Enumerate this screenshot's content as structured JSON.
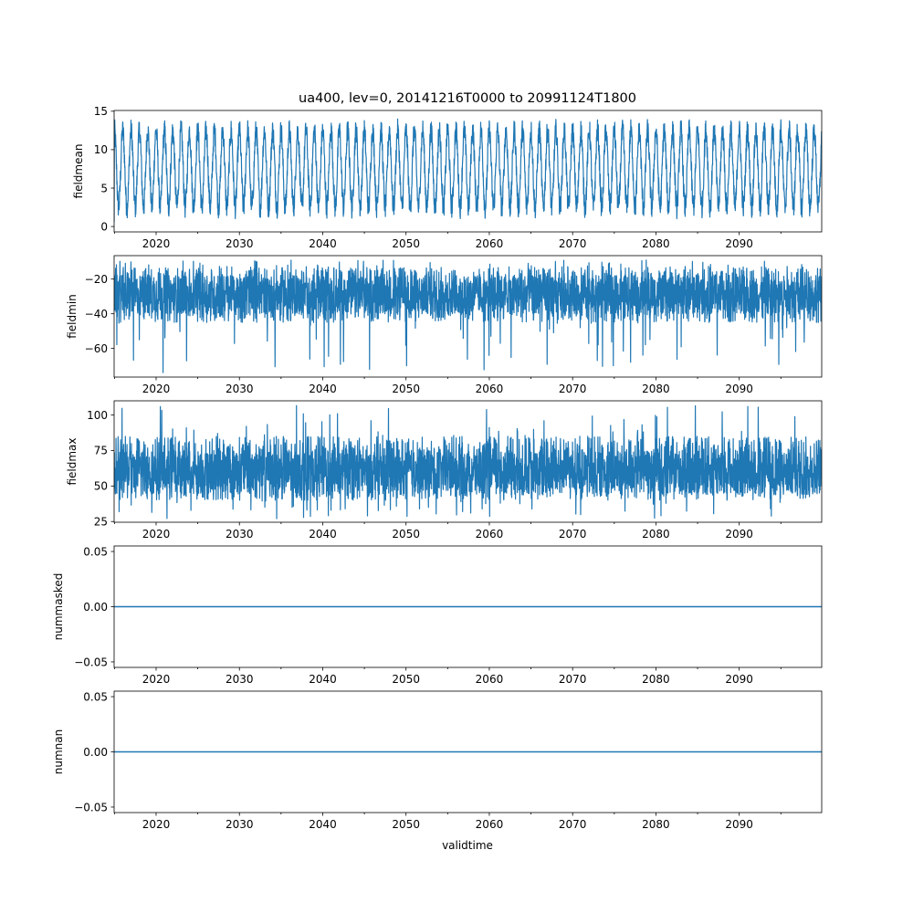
{
  "figure": {
    "title": "ua400, lev=0, 20141216T0000 to 20991124T1800",
    "xlabel": "validtime"
  },
  "colors": {
    "series": "#1f77b4",
    "axis": "#000000",
    "background": "#ffffff"
  },
  "chart_data": [
    {
      "type": "line",
      "name": "fieldmean",
      "ylabel": "fieldmean",
      "xlim": [
        2014.96,
        2099.9
      ],
      "ylim": [
        -0.7,
        15.1
      ],
      "xticks": [
        2020,
        2030,
        2040,
        2050,
        2060,
        2070,
        2080,
        2090
      ],
      "xtick_labels": [
        "2020",
        "2030",
        "2040",
        "2050",
        "2060",
        "2070",
        "2080",
        "2090"
      ],
      "yticks": [
        0,
        5,
        10,
        15
      ],
      "ytick_labels": [
        "0",
        "5",
        "10",
        "15"
      ],
      "series": [
        {
          "name": "fieldmean",
          "pattern": "annual-cycle",
          "low": 2.5,
          "high": 12.5,
          "noise": 1.5,
          "min": 0.0,
          "max": 14.3,
          "start": 0.6
        }
      ]
    },
    {
      "type": "line",
      "name": "fieldmin",
      "ylabel": "fieldmin",
      "xlim": [
        2014.96,
        2099.9
      ],
      "ylim": [
        -76.5,
        -6.5
      ],
      "xticks": [
        2020,
        2030,
        2040,
        2050,
        2060,
        2070,
        2080,
        2090
      ],
      "xtick_labels": [
        "2020",
        "2030",
        "2040",
        "2050",
        "2060",
        "2070",
        "2080",
        "2090"
      ],
      "yticks": [
        -60,
        -40,
        -20
      ],
      "ytick_labels": [
        "−60",
        "−40",
        "−20"
      ],
      "series": [
        {
          "name": "fieldmin",
          "pattern": "noisy-band",
          "center": -29,
          "band_low": -45,
          "band_high": -13,
          "min": -74,
          "max": -9
        }
      ]
    },
    {
      "type": "line",
      "name": "fieldmax",
      "ylabel": "fieldmax",
      "xlim": [
        2014.96,
        2099.9
      ],
      "ylim": [
        24.5,
        110
      ],
      "xticks": [
        2020,
        2030,
        2040,
        2050,
        2060,
        2070,
        2080,
        2090
      ],
      "xtick_labels": [
        "2020",
        "2030",
        "2040",
        "2050",
        "2060",
        "2070",
        "2080",
        "2090"
      ],
      "yticks": [
        25,
        50,
        75,
        100
      ],
      "ytick_labels": [
        "25",
        "50",
        "75",
        "100"
      ],
      "series": [
        {
          "name": "fieldmax",
          "pattern": "noisy-band",
          "center": 60,
          "band_low": 40,
          "band_high": 85,
          "min": 27,
          "max": 107
        }
      ]
    },
    {
      "type": "line",
      "name": "nummasked",
      "ylabel": "nummasked",
      "xlim": [
        2014.96,
        2099.9
      ],
      "ylim": [
        -0.055,
        0.055
      ],
      "xticks": [
        2020,
        2030,
        2040,
        2050,
        2060,
        2070,
        2080,
        2090
      ],
      "xtick_labels": [
        "2020",
        "2030",
        "2040",
        "2050",
        "2060",
        "2070",
        "2080",
        "2090"
      ],
      "yticks": [
        -0.05,
        0.0,
        0.05
      ],
      "ytick_labels": [
        "−0.05",
        "0.00",
        "0.05"
      ],
      "series": [
        {
          "name": "nummasked",
          "pattern": "constant",
          "value": 0
        }
      ]
    },
    {
      "type": "line",
      "name": "numnan",
      "ylabel": "numnan",
      "xlim": [
        2014.96,
        2099.9
      ],
      "ylim": [
        -0.055,
        0.055
      ],
      "xticks": [
        2020,
        2030,
        2040,
        2050,
        2060,
        2070,
        2080,
        2090
      ],
      "xtick_labels": [
        "2020",
        "2030",
        "2040",
        "2050",
        "2060",
        "2070",
        "2080",
        "2090"
      ],
      "yticks": [
        -0.05,
        0.0,
        0.05
      ],
      "ytick_labels": [
        "−0.05",
        "0.00",
        "0.05"
      ],
      "series": [
        {
          "name": "numnan",
          "pattern": "constant",
          "value": 0
        }
      ]
    }
  ]
}
